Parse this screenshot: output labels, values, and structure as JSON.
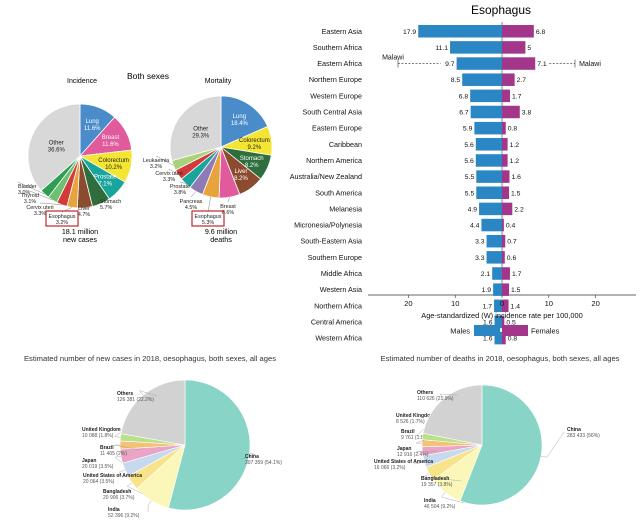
{
  "chart_data": [
    {
      "type": "pie",
      "group_title": "Both sexes",
      "title": "Incidence",
      "caption_lines": [
        "18.1 million",
        "new cases"
      ],
      "slices": [
        {
          "label": "Lung",
          "pct": "11.6%",
          "value": 11.6,
          "color": "#4a8bc9",
          "inside": true
        },
        {
          "label": "Breast",
          "pct": "11.6%",
          "value": 11.6,
          "color": "#e05a9c",
          "inside": true
        },
        {
          "label": "Colorectum",
          "pct": "10.2%",
          "value": 10.2,
          "color": "#f4e532",
          "inside": true
        },
        {
          "label": "Prostate",
          "pct": "7.1%",
          "value": 7.1,
          "color": "#1aa59c",
          "inside": true
        },
        {
          "label": "Stomach",
          "pct": "5.7%",
          "value": 5.7,
          "color": "#2e6e3c",
          "inside": false
        },
        {
          "label": "Liver",
          "pct": "4.7%",
          "value": 4.7,
          "color": "#8c4b2f",
          "inside": false
        },
        {
          "label": "Esophagus",
          "pct": "3.2%",
          "value": 3.2,
          "color": "#e8a33d",
          "inside": false,
          "boxed": true
        },
        {
          "label": "Cervix uteri",
          "pct": "3.3%",
          "value": 3.3,
          "color": "#d23a3a",
          "inside": false
        },
        {
          "label": "Thyroid",
          "pct": "3.1%",
          "value": 3.1,
          "color": "#6cc070",
          "inside": false
        },
        {
          "label": "Bladder",
          "pct": "3.0%",
          "value": 3.0,
          "color": "#2f9e52",
          "inside": false
        },
        {
          "label": "Other",
          "pct": "36.6%",
          "value": 36.6,
          "color": "#d8d8d8",
          "inside": true
        }
      ]
    },
    {
      "type": "pie",
      "title": "Mortality",
      "caption_lines": [
        "9.6 million",
        "deaths"
      ],
      "slices": [
        {
          "label": "Lung",
          "pct": "18.4%",
          "value": 18.4,
          "color": "#4a8bc9",
          "inside": true
        },
        {
          "label": "Colorectum",
          "pct": "9.2%",
          "value": 9.2,
          "color": "#f4e532",
          "inside": true
        },
        {
          "label": "Stomach",
          "pct": "8.2%",
          "value": 8.2,
          "color": "#2e6e3c",
          "inside": true
        },
        {
          "label": "Liver",
          "pct": "8.2%",
          "value": 8.2,
          "color": "#8c4b2f",
          "inside": true
        },
        {
          "label": "Breast",
          "pct": "6.6%",
          "value": 6.6,
          "color": "#e05a9c",
          "inside": false
        },
        {
          "label": "Esophagus",
          "pct": "5.3%",
          "value": 5.3,
          "color": "#e8a33d",
          "inside": false,
          "boxed": true
        },
        {
          "label": "Pancreas",
          "pct": "4.5%",
          "value": 4.5,
          "color": "#8e7bb5",
          "inside": false
        },
        {
          "label": "Prostate",
          "pct": "3.8%",
          "value": 3.8,
          "color": "#1aa59c",
          "inside": false
        },
        {
          "label": "Cervix uteri",
          "pct": "3.3%",
          "value": 3.3,
          "color": "#d23a3a",
          "inside": false
        },
        {
          "label": "Leukaemia",
          "pct": "3.2%",
          "value": 3.2,
          "color": "#a8d37a",
          "inside": false
        },
        {
          "label": "Other",
          "pct": "29.3%",
          "value": 29.3,
          "color": "#d8d8d8",
          "inside": true
        }
      ]
    },
    {
      "type": "bar",
      "orientation": "horizontal-diverging",
      "title": "Esophagus",
      "xlabel": "Age-standardized (W) incidence rate per 100,000",
      "xlim": [
        -30,
        30
      ],
      "xticks": [
        20,
        10,
        0,
        10,
        20
      ],
      "categories": [
        "Eastern Asia",
        "Southern Africa",
        "Eastern Africa",
        "Northern Europe",
        "Western Europe",
        "South Central Asia",
        "Eastern Europe",
        "Caribbean",
        "Northern America",
        "Australia/New Zealand",
        "South America",
        "Melanesia",
        "Micronesia/Polynesia",
        "South-Eastern Asia",
        "Southern Europe",
        "Middle Africa",
        "Western Asia",
        "Northern Africa",
        "Central America",
        "Western Africa"
      ],
      "series": [
        {
          "name": "Males",
          "color": "#2b87c3",
          "values": [
            17.9,
            11.1,
            9.7,
            8.5,
            6.8,
            6.7,
            5.9,
            5.6,
            5.6,
            5.5,
            5.5,
            4.9,
            4.4,
            3.3,
            3.3,
            2.1,
            1.9,
            1.7,
            1.6,
            1.6
          ]
        },
        {
          "name": "Females",
          "color": "#a3358a",
          "values": [
            6.8,
            5.0,
            7.1,
            2.7,
            1.7,
            3.8,
            0.8,
            1.2,
            1.2,
            1.6,
            1.5,
            2.2,
            0.4,
            0.7,
            0.6,
            1.7,
            1.5,
            1.4,
            0.5,
            0.8
          ]
        }
      ],
      "annotations": [
        {
          "text": "Malawi",
          "side": "left",
          "row": "Eastern Africa"
        },
        {
          "text": "Malawi",
          "side": "right",
          "row": "Eastern Africa"
        }
      ]
    },
    {
      "type": "pie",
      "title": "Estimated number of new cases in 2018, oesophagus, both sexes, all ages",
      "slices": [
        {
          "label": "China",
          "value_text": "307 359 (54.1%)",
          "value": 54.1,
          "color": "#88d4c6"
        },
        {
          "label": "India",
          "value_text": "52 396 (9.2%)",
          "value": 9.2,
          "color": "#fbf7b8"
        },
        {
          "label": "Bangladesh",
          "value_text": "20 906 (3.7%)",
          "value": 3.7,
          "color": "#f9e38a"
        },
        {
          "label": "United States of America",
          "value_text": "20 064 (3.5%)",
          "value": 3.5,
          "color": "#c7d9ee"
        },
        {
          "label": "Japan",
          "value_text": "20 019 (3.5%)",
          "value": 3.5,
          "color": "#e9a4c6"
        },
        {
          "label": "Brazil",
          "value_text": "11 405 (2%)",
          "value": 2.0,
          "color": "#f3c276"
        },
        {
          "label": "United Kingdom",
          "value_text": "10 088 (1.8%)",
          "value": 1.8,
          "color": "#bbe08c"
        },
        {
          "label": "Others",
          "value_text": "126 381 (22.2%)",
          "value": 22.2,
          "color": "#d2d2d2"
        }
      ]
    },
    {
      "type": "pie",
      "title": "Estimated number of deaths in 2018, oesophagus, both sexes, all ages",
      "slices": [
        {
          "label": "China",
          "value_text": "283 433 (56%)",
          "value": 56.0,
          "color": "#88d4c6"
        },
        {
          "label": "India",
          "value_text": "46 504 (9.2%)",
          "value": 9.2,
          "color": "#fbf7b8"
        },
        {
          "label": "Bangladesh",
          "value_text": "19 357 (3.8%)",
          "value": 3.8,
          "color": "#f9e38a"
        },
        {
          "label": "United States of America",
          "value_text": "16 066 (3.2%)",
          "value": 3.2,
          "color": "#c7d9ee"
        },
        {
          "label": "Japan",
          "value_text": "12 916 (2.4%)",
          "value": 2.4,
          "color": "#e9a4c6"
        },
        {
          "label": "Brazil",
          "value_text": "9 761 (1.9%)",
          "value": 1.9,
          "color": "#f3c276"
        },
        {
          "label": "United Kingdom",
          "value_text": "8 526 (1.7%)",
          "value": 1.7,
          "color": "#bbe08c"
        },
        {
          "label": "Others",
          "value_text": "110 626 (21.9%)",
          "value": 21.9,
          "color": "#d2d2d2"
        }
      ]
    }
  ]
}
